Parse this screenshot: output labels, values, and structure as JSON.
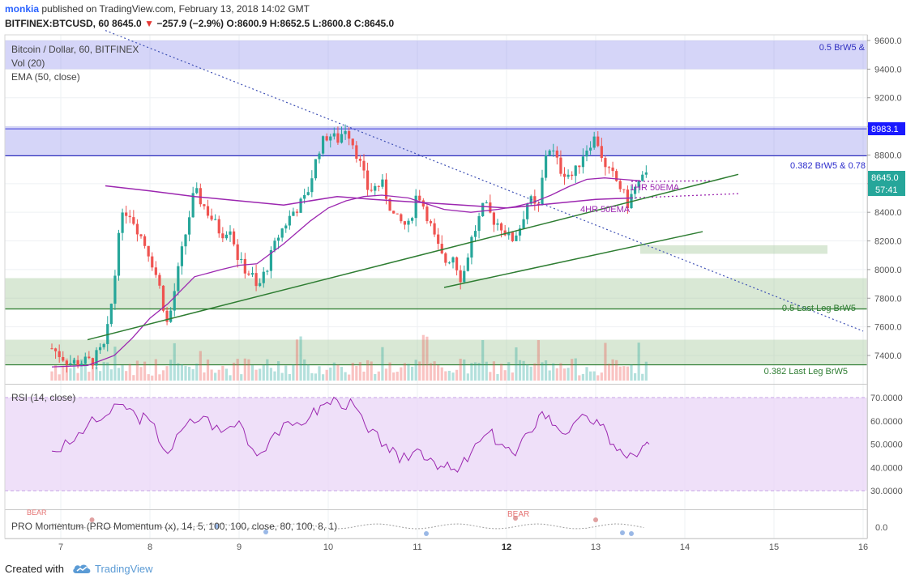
{
  "header": {
    "user": "monkia",
    "published": " published on TradingView.com, February 13, 2018 14:02 GMT",
    "symbol": "BITFINEX:BTCUSD, 60",
    "last": "8645.0",
    "change_arrow": "▼",
    "change": "−257.9 (−2.9%)",
    "ohlc": "O:8600.9 H:8652.5 L:8600.8 C:8645.0"
  },
  "legend": {
    "main": "Bitcoin / Dollar, 60, BITFINEX",
    "vol": "Vol (20)",
    "ema": "EMA (50, close)",
    "rsi": "RSI (14, close)",
    "momentum": "PRO Momentum (PRO Momentum (x), 14, 5, 100, 100, close, 80, 100, 8, 1)"
  },
  "annotations": {
    "zone_top": "0.5 BrW5 &",
    "line_0382_brw5": "0.382 BrW5 & 0.78",
    "line_05_last_leg": "0.5 Last Leg BrW5",
    "line_0382_last_leg": "0.382 Last Leg BrW5",
    "ema_1hr": "1HR 50EMA",
    "ema_4hr": "4HR 50EMA",
    "bear_1": "BEAR",
    "bear_2": "BEAR"
  },
  "price_badges": {
    "level": "8983.1",
    "current": "8645.0",
    "countdown": "57:41"
  },
  "footer": {
    "created_with": "Created with",
    "brand": "TradingView"
  },
  "colors": {
    "up": "#26a69a",
    "down": "#ef5350",
    "ema": "#9c27b0",
    "trend": "#2e7d32",
    "blue_zone": "#7c7ce8",
    "green_zone": "#a5c99a",
    "rsi_band": "#e9d5f7",
    "rsi_line": "#9c27b0",
    "dotted_line": "#3f51b5",
    "level_badge": "#1a1aff",
    "current_badge": "#26a69a"
  },
  "chart_data": {
    "type": "candlestick",
    "price_axis": {
      "min": 7300,
      "max": 9650,
      "ticks": [
        "9600.0",
        "9400.0",
        "9200.0",
        "9000.0",
        "8800.0",
        "8600.0",
        "8400.0",
        "8200.0",
        "8000.0",
        "7800.0",
        "7600.0",
        "7400.0"
      ]
    },
    "time_axis": {
      "ticks": [
        "7",
        "8",
        "9",
        "10",
        "11",
        "12",
        "13",
        "14",
        "15",
        "16"
      ]
    },
    "rsi_axis": {
      "min": 25,
      "max": 75,
      "ticks": [
        "70.0000",
        "60.0000",
        "50.0000",
        "40.0000",
        "30.0000"
      ],
      "band": [
        30,
        70
      ]
    },
    "momentum_axis": {
      "ticks": [
        "0.0"
      ]
    },
    "zones": {
      "blue": [
        [
          9400,
          9600
        ],
        [
          8800,
          9000
        ]
      ],
      "green": [
        [
          7720,
          7940
        ],
        [
          7340,
          7510
        ],
        [
          8110,
          8170
        ]
      ]
    },
    "levels": {
      "brw5_0382": 8795,
      "last_leg_05": 7725,
      "last_leg_0382": 7335,
      "blue_line": 8983.1
    },
    "close_path": [
      [
        6.9,
        7450
      ],
      [
        7.1,
        7350
      ],
      [
        7.35,
        7360
      ],
      [
        7.5,
        7470
      ],
      [
        7.6,
        7900
      ],
      [
        7.65,
        8300
      ],
      [
        7.75,
        8430
      ],
      [
        7.85,
        8300
      ],
      [
        8.0,
        8100
      ],
      [
        8.1,
        7900
      ],
      [
        8.2,
        7600
      ],
      [
        8.35,
        8100
      ],
      [
        8.5,
        8550
      ],
      [
        8.65,
        8400
      ],
      [
        8.8,
        8250
      ],
      [
        8.9,
        8300
      ],
      [
        9.0,
        8050
      ],
      [
        9.15,
        7950
      ],
      [
        9.2,
        7850
      ],
      [
        9.3,
        8000
      ],
      [
        9.45,
        8250
      ],
      [
        9.6,
        8400
      ],
      [
        9.75,
        8500
      ],
      [
        9.9,
        8850
      ],
      [
        10.0,
        8950
      ],
      [
        10.1,
        8900
      ],
      [
        10.2,
        9000
      ],
      [
        10.3,
        8850
      ],
      [
        10.45,
        8550
      ],
      [
        10.6,
        8600
      ],
      [
        10.75,
        8350
      ],
      [
        10.9,
        8300
      ],
      [
        11.0,
        8550
      ],
      [
        11.1,
        8400
      ],
      [
        11.2,
        8200
      ],
      [
        11.3,
        8050
      ],
      [
        11.4,
        8100
      ],
      [
        11.5,
        7920
      ],
      [
        11.6,
        8200
      ],
      [
        11.75,
        8450
      ],
      [
        11.85,
        8350
      ],
      [
        11.95,
        8300
      ],
      [
        12.05,
        8200
      ],
      [
        12.15,
        8300
      ],
      [
        12.25,
        8500
      ],
      [
        12.35,
        8400
      ],
      [
        12.45,
        8850
      ],
      [
        12.5,
        8850
      ],
      [
        12.6,
        8700
      ],
      [
        12.75,
        8650
      ],
      [
        12.85,
        8800
      ],
      [
        12.95,
        8900
      ],
      [
        13.0,
        8920
      ],
      [
        13.05,
        8850
      ],
      [
        13.1,
        8700
      ],
      [
        13.2,
        8650
      ],
      [
        13.3,
        8550
      ],
      [
        13.35,
        8450
      ],
      [
        13.45,
        8580
      ],
      [
        13.55,
        8645
      ]
    ],
    "ema50_path": [
      [
        6.9,
        7320
      ],
      [
        7.3,
        7330
      ],
      [
        7.6,
        7400
      ],
      [
        7.8,
        7520
      ],
      [
        8.0,
        7660
      ],
      [
        8.2,
        7760
      ],
      [
        8.5,
        7950
      ],
      [
        8.8,
        8000
      ],
      [
        9.0,
        8030
      ],
      [
        9.2,
        8040
      ],
      [
        9.5,
        8180
      ],
      [
        9.8,
        8340
      ],
      [
        10.0,
        8430
      ],
      [
        10.2,
        8480
      ],
      [
        10.4,
        8510
      ],
      [
        10.6,
        8520
      ],
      [
        10.9,
        8500
      ],
      [
        11.1,
        8460
      ],
      [
        11.3,
        8420
      ],
      [
        11.6,
        8400
      ],
      [
        11.9,
        8420
      ],
      [
        12.1,
        8440
      ],
      [
        12.3,
        8470
      ],
      [
        12.5,
        8520
      ],
      [
        12.7,
        8580
      ],
      [
        12.9,
        8630
      ],
      [
        13.1,
        8640
      ],
      [
        13.3,
        8630
      ],
      [
        13.5,
        8620
      ]
    ],
    "ema_4hr_path": [
      [
        7.5,
        8585
      ],
      [
        8.0,
        8550
      ],
      [
        8.5,
        8510
      ],
      [
        9.0,
        8480
      ],
      [
        9.5,
        8450
      ],
      [
        10.1,
        8510
      ],
      [
        10.5,
        8490
      ],
      [
        11.0,
        8470
      ],
      [
        11.5,
        8450
      ],
      [
        12.0,
        8430
      ],
      [
        12.5,
        8460
      ],
      [
        13.0,
        8490
      ],
      [
        13.4,
        8500
      ],
      [
        14.6,
        8530
      ]
    ],
    "trendlines": [
      [
        [
          7.3,
          7510
        ],
        [
          14.6,
          8665
        ]
      ],
      [
        [
          11.3,
          7875
        ],
        [
          14.2,
          8265
        ]
      ]
    ],
    "dotted_downtrend": [
      [
        7.5,
        9670
      ],
      [
        16.0,
        7570
      ]
    ],
    "rsi_path": [
      [
        6.9,
        47
      ],
      [
        7.1,
        50
      ],
      [
        7.3,
        58
      ],
      [
        7.5,
        62
      ],
      [
        7.7,
        67
      ],
      [
        7.85,
        62
      ],
      [
        8.0,
        60
      ],
      [
        8.2,
        46
      ],
      [
        8.4,
        58
      ],
      [
        8.6,
        62
      ],
      [
        8.8,
        55
      ],
      [
        9.0,
        60
      ],
      [
        9.2,
        45
      ],
      [
        9.4,
        55
      ],
      [
        9.6,
        58
      ],
      [
        9.8,
        62
      ],
      [
        9.95,
        67
      ],
      [
        10.1,
        69
      ],
      [
        10.3,
        66
      ],
      [
        10.45,
        55
      ],
      [
        10.65,
        50
      ],
      [
        10.8,
        42
      ],
      [
        11.0,
        48
      ],
      [
        11.15,
        44
      ],
      [
        11.3,
        40
      ],
      [
        11.45,
        38
      ],
      [
        11.6,
        46
      ],
      [
        11.8,
        55
      ],
      [
        11.95,
        50
      ],
      [
        12.1,
        45
      ],
      [
        12.25,
        55
      ],
      [
        12.4,
        64
      ],
      [
        12.55,
        58
      ],
      [
        12.7,
        55
      ],
      [
        12.9,
        62
      ],
      [
        13.05,
        58
      ],
      [
        13.2,
        50
      ],
      [
        13.35,
        44
      ],
      [
        13.5,
        47
      ],
      [
        13.6,
        50
      ]
    ]
  }
}
